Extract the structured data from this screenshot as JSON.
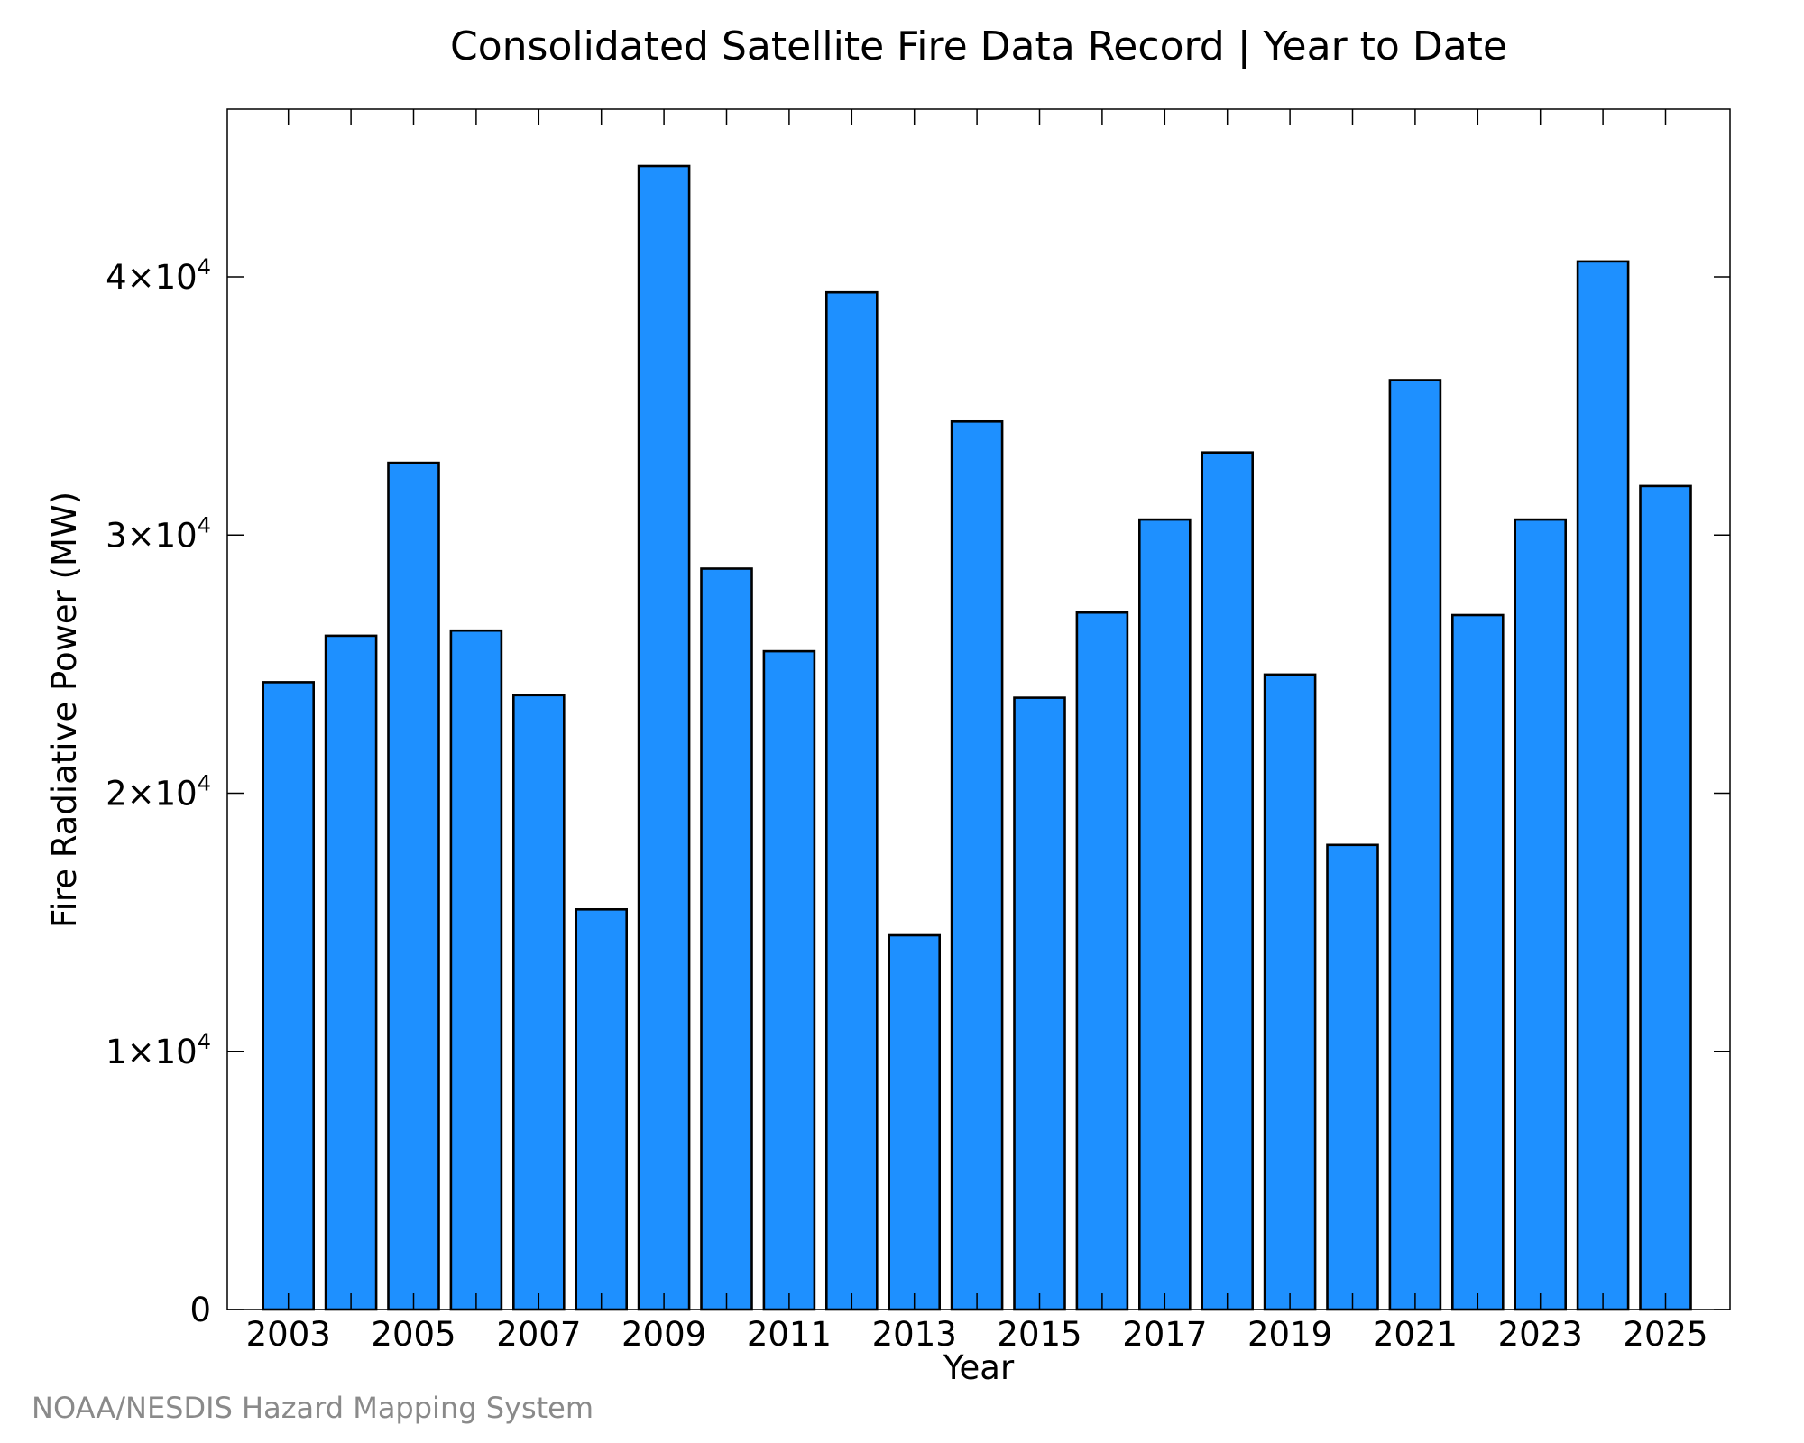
{
  "chart_data": {
    "type": "bar",
    "title": "Consolidated Satellite Fire Data Record | Year to Date",
    "xlabel": "Year",
    "ylabel": "Fire Radiative Power (MW)",
    "ylim": [
      0,
      46500
    ],
    "y_ticks": [
      {
        "value": 0,
        "label": "0"
      },
      {
        "value": 10000,
        "mant": "1×10",
        "exp": "4"
      },
      {
        "value": 20000,
        "mant": "2×10",
        "exp": "4"
      },
      {
        "value": 30000,
        "mant": "3×10",
        "exp": "4"
      },
      {
        "value": 40000,
        "mant": "4×10",
        "exp": "4"
      }
    ],
    "x_tick_labels": [
      "2003",
      "2005",
      "2007",
      "2009",
      "2011",
      "2013",
      "2015",
      "2017",
      "2019",
      "2021",
      "2023",
      "2025"
    ],
    "categories": [
      "2003",
      "2004",
      "2005",
      "2006",
      "2007",
      "2008",
      "2009",
      "2010",
      "2011",
      "2012",
      "2013",
      "2014",
      "2015",
      "2016",
      "2017",
      "2018",
      "2019",
      "2020",
      "2021",
      "2022",
      "2023",
      "2024",
      "2025"
    ],
    "values": [
      24300,
      26100,
      32800,
      26300,
      23800,
      15500,
      44300,
      28700,
      25500,
      39400,
      14500,
      34400,
      23700,
      27000,
      30600,
      33200,
      24600,
      18000,
      36000,
      26900,
      30600,
      40600,
      31900
    ],
    "bar_color": "#1e90ff",
    "bar_edge_color": "#000000",
    "grid": false
  },
  "footer": {
    "source": "NOAA/NESDIS Hazard Mapping System"
  }
}
